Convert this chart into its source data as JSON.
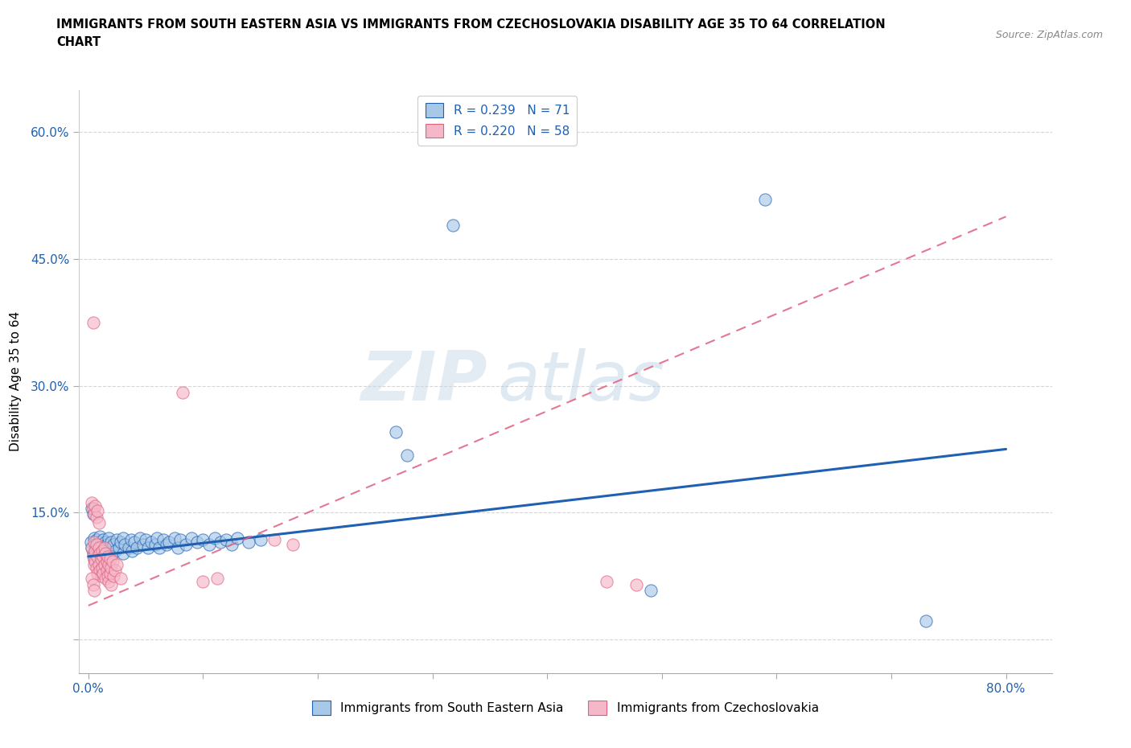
{
  "title_line1": "IMMIGRANTS FROM SOUTH EASTERN ASIA VS IMMIGRANTS FROM CZECHOSLOVAKIA DISABILITY AGE 35 TO 64 CORRELATION",
  "title_line2": "CHART",
  "source": "Source: ZipAtlas.com",
  "xlabel_blue": "Immigrants from South Eastern Asia",
  "xlabel_pink": "Immigrants from Czechoslovakia",
  "ylabel": "Disability Age 35 to 64",
  "xlim": [
    -0.008,
    0.84
  ],
  "ylim": [
    -0.04,
    0.65
  ],
  "R_blue": 0.239,
  "N_blue": 71,
  "R_pink": 0.22,
  "N_pink": 58,
  "color_blue": "#a8c8e8",
  "color_pink": "#f5b8c8",
  "line_blue": "#2060b0",
  "line_pink": "#e06080",
  "watermark_zip": "ZIP",
  "watermark_atlas": "atlas",
  "blue_trendline": [
    [
      0.0,
      0.098
    ],
    [
      0.8,
      0.225
    ]
  ],
  "pink_trendline": [
    [
      0.0,
      0.04
    ],
    [
      0.8,
      0.5
    ]
  ],
  "blue_scatter": [
    [
      0.002,
      0.115
    ],
    [
      0.003,
      0.108
    ],
    [
      0.004,
      0.102
    ],
    [
      0.005,
      0.12
    ],
    [
      0.005,
      0.095
    ],
    [
      0.006,
      0.112
    ],
    [
      0.007,
      0.098
    ],
    [
      0.007,
      0.118
    ],
    [
      0.008,
      0.105
    ],
    [
      0.009,
      0.115
    ],
    [
      0.01,
      0.108
    ],
    [
      0.01,
      0.122
    ],
    [
      0.011,
      0.095
    ],
    [
      0.012,
      0.11
    ],
    [
      0.013,
      0.102
    ],
    [
      0.013,
      0.118
    ],
    [
      0.014,
      0.108
    ],
    [
      0.015,
      0.115
    ],
    [
      0.015,
      0.098
    ],
    [
      0.016,
      0.112
    ],
    [
      0.017,
      0.105
    ],
    [
      0.018,
      0.12
    ],
    [
      0.019,
      0.108
    ],
    [
      0.02,
      0.115
    ],
    [
      0.02,
      0.098
    ],
    [
      0.022,
      0.112
    ],
    [
      0.023,
      0.105
    ],
    [
      0.025,
      0.118
    ],
    [
      0.027,
      0.108
    ],
    [
      0.028,
      0.115
    ],
    [
      0.03,
      0.102
    ],
    [
      0.03,
      0.12
    ],
    [
      0.032,
      0.112
    ],
    [
      0.035,
      0.108
    ],
    [
      0.037,
      0.118
    ],
    [
      0.038,
      0.105
    ],
    [
      0.04,
      0.115
    ],
    [
      0.042,
      0.108
    ],
    [
      0.045,
      0.12
    ],
    [
      0.048,
      0.112
    ],
    [
      0.05,
      0.118
    ],
    [
      0.052,
      0.108
    ],
    [
      0.055,
      0.115
    ],
    [
      0.058,
      0.112
    ],
    [
      0.06,
      0.12
    ],
    [
      0.062,
      0.108
    ],
    [
      0.065,
      0.118
    ],
    [
      0.068,
      0.112
    ],
    [
      0.07,
      0.115
    ],
    [
      0.075,
      0.12
    ],
    [
      0.078,
      0.108
    ],
    [
      0.08,
      0.118
    ],
    [
      0.085,
      0.112
    ],
    [
      0.09,
      0.12
    ],
    [
      0.095,
      0.115
    ],
    [
      0.1,
      0.118
    ],
    [
      0.105,
      0.112
    ],
    [
      0.11,
      0.12
    ],
    [
      0.115,
      0.115
    ],
    [
      0.12,
      0.118
    ],
    [
      0.125,
      0.112
    ],
    [
      0.13,
      0.12
    ],
    [
      0.14,
      0.115
    ],
    [
      0.15,
      0.118
    ],
    [
      0.003,
      0.155
    ],
    [
      0.004,
      0.148
    ],
    [
      0.268,
      0.245
    ],
    [
      0.278,
      0.218
    ],
    [
      0.318,
      0.49
    ],
    [
      0.49,
      0.058
    ],
    [
      0.59,
      0.52
    ],
    [
      0.73,
      0.022
    ]
  ],
  "pink_scatter": [
    [
      0.004,
      0.375
    ],
    [
      0.003,
      0.108
    ],
    [
      0.004,
      0.098
    ],
    [
      0.005,
      0.115
    ],
    [
      0.005,
      0.088
    ],
    [
      0.006,
      0.105
    ],
    [
      0.006,
      0.092
    ],
    [
      0.007,
      0.112
    ],
    [
      0.007,
      0.085
    ],
    [
      0.008,
      0.098
    ],
    [
      0.008,
      0.078
    ],
    [
      0.009,
      0.108
    ],
    [
      0.009,
      0.088
    ],
    [
      0.01,
      0.102
    ],
    [
      0.01,
      0.082
    ],
    [
      0.011,
      0.095
    ],
    [
      0.011,
      0.075
    ],
    [
      0.012,
      0.105
    ],
    [
      0.012,
      0.085
    ],
    [
      0.013,
      0.098
    ],
    [
      0.013,
      0.078
    ],
    [
      0.014,
      0.108
    ],
    [
      0.014,
      0.088
    ],
    [
      0.015,
      0.102
    ],
    [
      0.015,
      0.072
    ],
    [
      0.016,
      0.092
    ],
    [
      0.016,
      0.082
    ],
    [
      0.017,
      0.098
    ],
    [
      0.017,
      0.075
    ],
    [
      0.018,
      0.088
    ],
    [
      0.018,
      0.068
    ],
    [
      0.019,
      0.095
    ],
    [
      0.019,
      0.078
    ],
    [
      0.02,
      0.085
    ],
    [
      0.02,
      0.065
    ],
    [
      0.021,
      0.092
    ],
    [
      0.022,
      0.075
    ],
    [
      0.023,
      0.082
    ],
    [
      0.025,
      0.088
    ],
    [
      0.028,
      0.072
    ],
    [
      0.003,
      0.162
    ],
    [
      0.004,
      0.155
    ],
    [
      0.005,
      0.148
    ],
    [
      0.006,
      0.158
    ],
    [
      0.007,
      0.145
    ],
    [
      0.008,
      0.152
    ],
    [
      0.009,
      0.138
    ],
    [
      0.003,
      0.072
    ],
    [
      0.004,
      0.065
    ],
    [
      0.005,
      0.058
    ],
    [
      0.082,
      0.292
    ],
    [
      0.1,
      0.068
    ],
    [
      0.112,
      0.072
    ],
    [
      0.162,
      0.118
    ],
    [
      0.178,
      0.112
    ],
    [
      0.452,
      0.068
    ],
    [
      0.478,
      0.065
    ]
  ]
}
